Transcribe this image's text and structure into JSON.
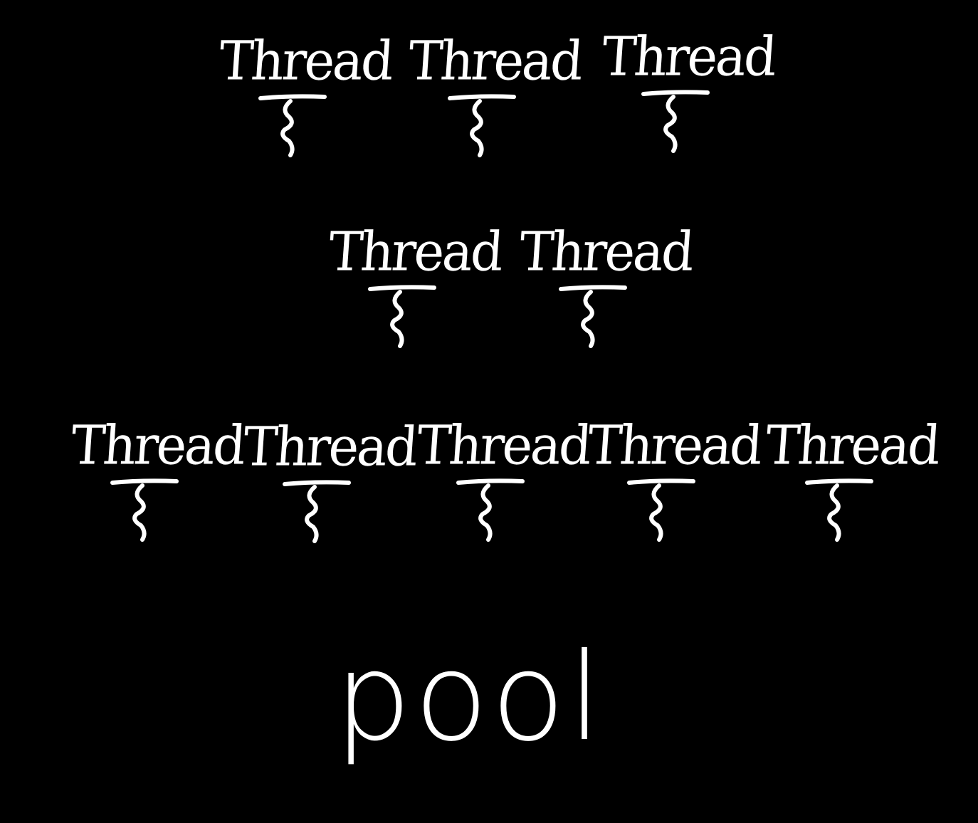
{
  "rows": [
    {
      "threads": [
        {
          "label": "Thread"
        },
        {
          "label": "Thread"
        },
        {
          "label": "Thread"
        }
      ]
    },
    {
      "threads": [
        {
          "label": "Thread"
        },
        {
          "label": "Thread"
        }
      ]
    },
    {
      "threads": [
        {
          "label": "Thread"
        },
        {
          "label": "Thread"
        },
        {
          "label": "Thread"
        },
        {
          "label": "Thread"
        },
        {
          "label": "Thread"
        }
      ]
    }
  ],
  "pool_label": "pool",
  "colors": {
    "background": "#000000",
    "ink": "#ffffff"
  },
  "icons": {
    "thread": "thread-squiggle-icon"
  }
}
